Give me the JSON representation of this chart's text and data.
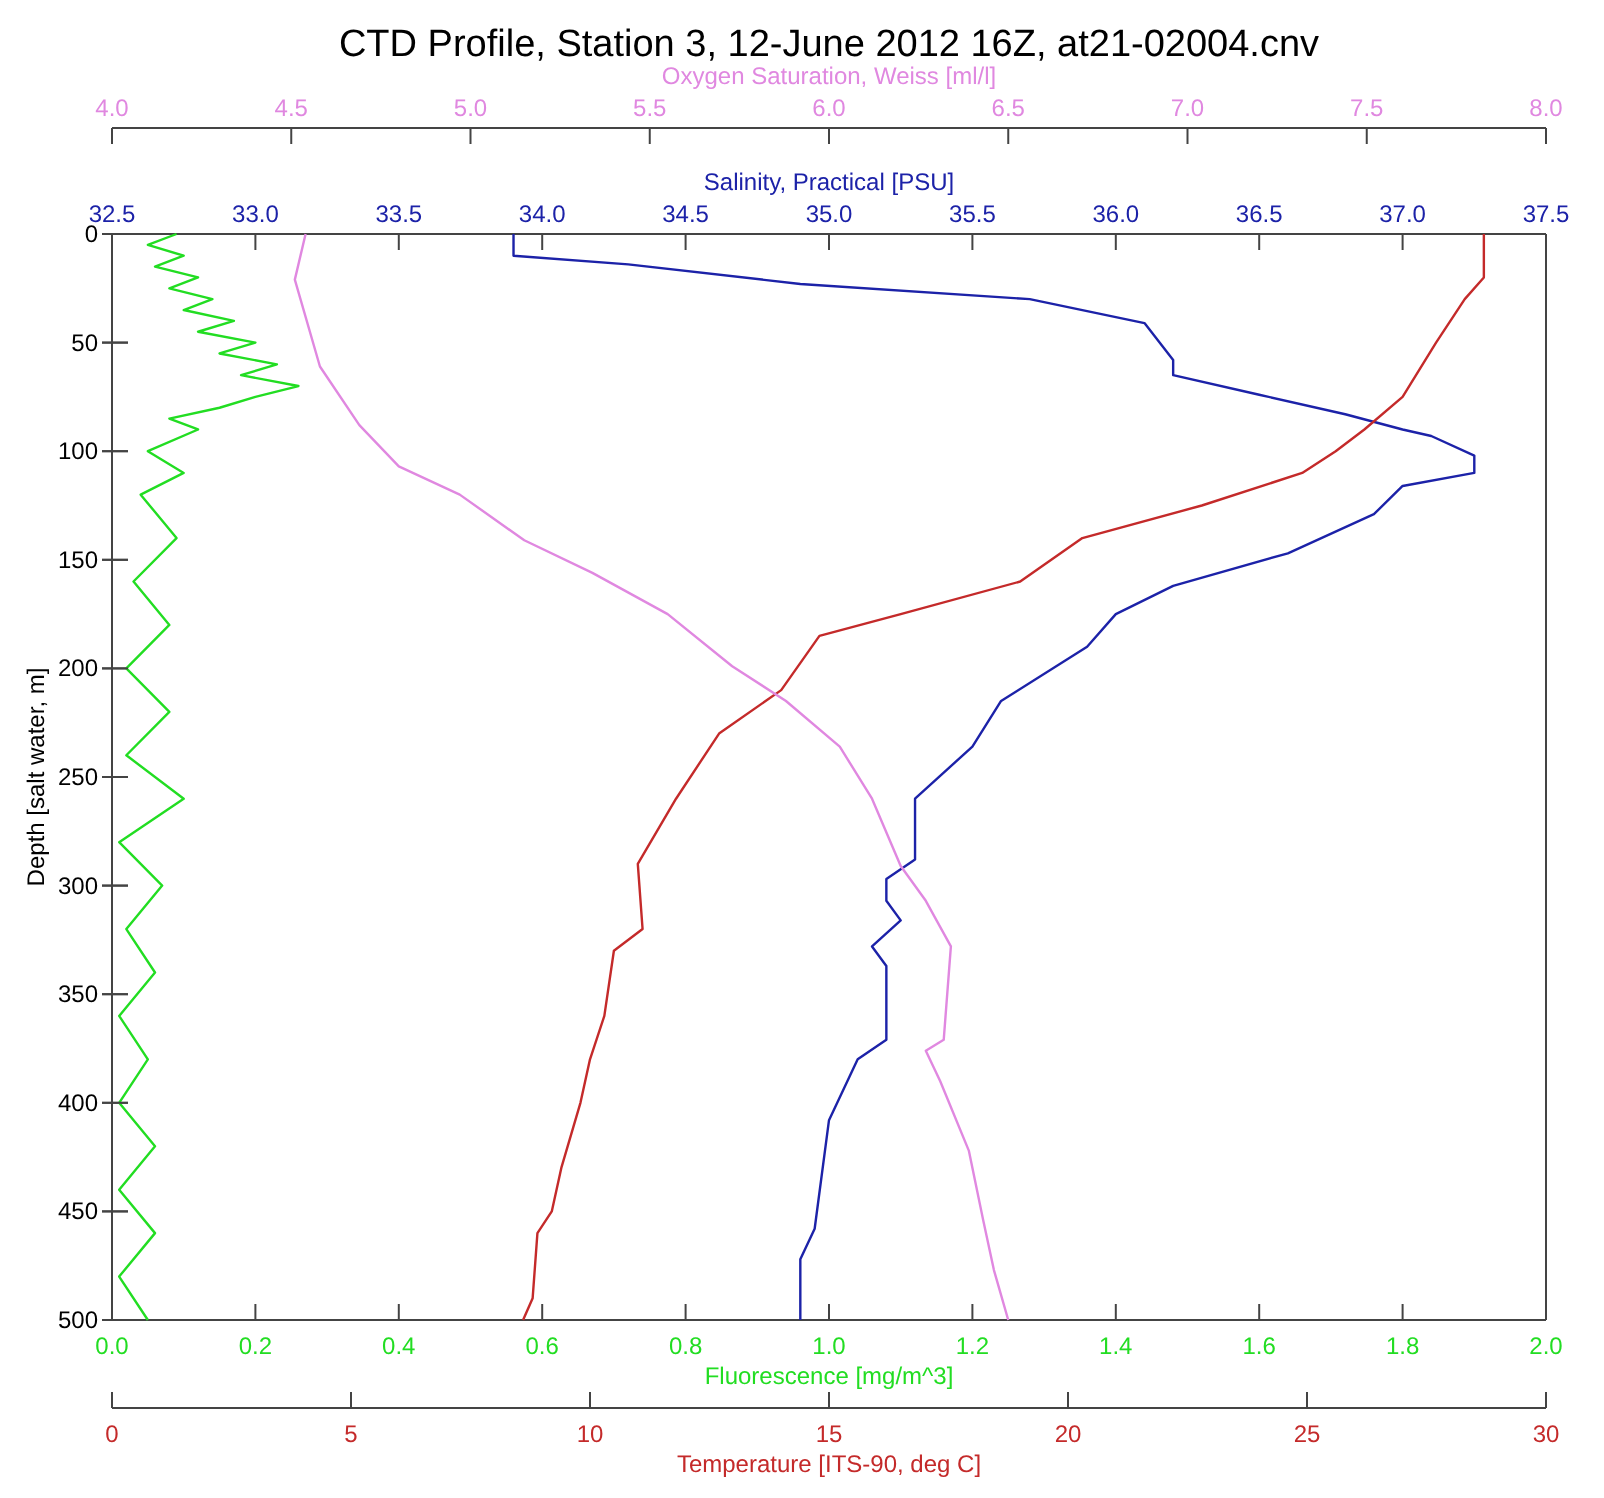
{
  "chart_data": [
    {
      "type": "line",
      "title": "CTD Profile, Station 3, 12-June 2012 16Z, at21-02004.cnv",
      "ylabel": "Depth [salt water, m]",
      "ylim": [
        500,
        0
      ],
      "yticks": [
        0,
        50,
        100,
        150,
        200,
        250,
        300,
        350,
        400,
        450,
        500
      ],
      "xlabel": "Fluorescence [mg/m^3]",
      "xlim": [
        0,
        2
      ],
      "xticks": [
        {
          "value": 0,
          "label": "0.0"
        },
        0.2,
        0.4,
        0.6,
        0.8,
        {
          "value": 1,
          "label": "1.0"
        },
        1.2,
        1.4,
        1.6,
        1.8,
        {
          "value": 2,
          "label": "2.0"
        }
      ],
      "x2label": "Salinity, Practical [PSU]",
      "x2lim": [
        32.5,
        37.5
      ],
      "x2ticks": [
        32.5,
        {
          "value": 33,
          "label": "33.0"
        },
        33.5,
        {
          "value": 34,
          "label": "34.0"
        },
        34.5,
        {
          "value": 35,
          "label": "35.0"
        },
        35.5,
        {
          "value": 36,
          "label": "36.0"
        },
        36.5,
        {
          "value": 37,
          "label": "37.0"
        },
        37.5
      ],
      "grid": false,
      "marker": "none",
      "line_style": "solid",
      "series": [
        {
          "color": "#22dd22",
          "x": [
            0.09,
            0.05,
            0.1,
            0.06,
            0.12,
            0.08,
            0.14,
            0.1,
            0.17,
            0.12,
            0.2,
            0.15,
            0.23,
            0.18,
            0.26,
            0.2,
            0.15,
            0.08,
            0.12,
            0.05,
            0.1,
            0.04,
            0.09,
            0.03,
            0.08,
            0.02,
            0.08,
            0.02,
            0.1,
            0.01,
            0.07,
            0.02,
            0.06,
            0.01,
            0.05,
            0.01,
            0.06,
            0.01,
            0.06,
            0.01,
            0.05
          ],
          "values": [
            0,
            5,
            10,
            15,
            20,
            25,
            30,
            35,
            40,
            45,
            50,
            55,
            60,
            65,
            70,
            75,
            80,
            85,
            90,
            100,
            110,
            120,
            140,
            160,
            180,
            200,
            220,
            240,
            260,
            280,
            300,
            320,
            340,
            360,
            380,
            400,
            420,
            440,
            460,
            480,
            500
          ]
        },
        {
          "axis": "x2",
          "color": "#1c22a8",
          "x": [
            33.9,
            33.9,
            34.3,
            34.9,
            35.7,
            36.1,
            36.2,
            36.2,
            36.5,
            36.8,
            37.0,
            37.1,
            37.25,
            37.25,
            37.0,
            36.9,
            36.6,
            36.2,
            36.0,
            35.9,
            35.6,
            35.5,
            35.3,
            35.3,
            35.2,
            35.2,
            35.25,
            35.15,
            35.2,
            35.2,
            35.1,
            35.0,
            34.95,
            34.9,
            34.9
          ],
          "values": [
            0,
            10,
            14,
            23,
            30,
            41,
            58,
            65,
            74,
            83,
            90,
            93,
            102,
            110,
            116,
            129,
            147,
            162,
            175,
            190,
            215,
            236,
            260,
            288,
            297,
            307,
            316,
            328,
            337,
            371,
            380,
            408,
            458,
            472,
            500
          ]
        }
      ]
    },
    {
      "type": "line",
      "ylim": [
        500,
        0
      ],
      "yticks": [
        0,
        50,
        100,
        150,
        200,
        250,
        300,
        350,
        400,
        450,
        500
      ],
      "tick_labels": "x",
      "xlabel": "Temperature [ITS-90, deg C]",
      "xlim": [
        0,
        30
      ],
      "xticks": [
        0,
        5,
        10,
        15,
        20,
        25,
        30
      ],
      "x2label": "Oxygen Saturation, Weiss [ml/l]",
      "x2lim": [
        4,
        8
      ],
      "x2ticks": [
        {
          "value": 4,
          "label": "4.0"
        },
        4.5,
        {
          "value": 5,
          "label": "5.0"
        },
        5.5,
        {
          "value": 6,
          "label": "6.0"
        },
        6.5,
        {
          "value": 7,
          "label": "7.0"
        },
        7.5,
        {
          "value": 8,
          "label": "8.0"
        }
      ],
      "grid": false,
      "marker": "none",
      "line_style": "solid",
      "series": [
        {
          "color": "#c42a2a",
          "x": [
            28.7,
            28.7,
            28.3,
            27.7,
            27.0,
            26.2,
            25.6,
            24.9,
            22.8,
            20.3,
            19.0,
            16.5,
            14.8,
            14.0,
            12.7,
            11.8,
            11.0,
            11.1,
            10.5,
            10.3,
            10.0,
            9.8,
            9.4,
            9.2,
            8.9,
            8.8,
            8.6
          ],
          "values": [
            0,
            20,
            30,
            50,
            75,
            90,
            100,
            110,
            125,
            140,
            160,
            175,
            185,
            210,
            230,
            260,
            290,
            320,
            330,
            360,
            380,
            400,
            430,
            450,
            460,
            490,
            500
          ]
        },
        {
          "axis": "x2",
          "color": "#e088e0",
          "x": [
            4.54,
            4.51,
            4.58,
            4.69,
            4.8,
            4.97,
            5.15,
            5.34,
            5.55,
            5.73,
            5.88,
            6.03,
            6.12,
            6.2,
            6.27,
            6.34,
            6.32,
            6.27,
            6.31,
            6.39,
            6.43,
            6.46,
            6.5
          ],
          "values": [
            0,
            21,
            61,
            88,
            107,
            120,
            141,
            156,
            175,
            199,
            215,
            236,
            260,
            291,
            307,
            328,
            371,
            376,
            390,
            422,
            454,
            477,
            500
          ]
        }
      ]
    }
  ]
}
